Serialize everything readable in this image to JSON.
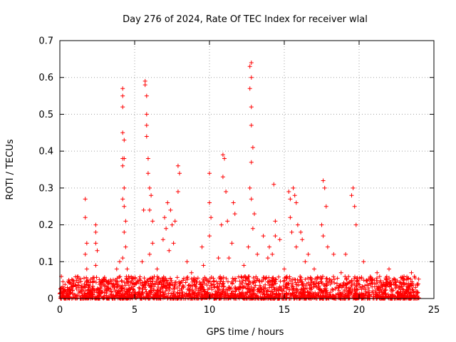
{
  "chart_data": {
    "type": "scatter",
    "title": "Day 276 of 2024, Rate Of TEC Index for receiver wlal",
    "xlabel": "GPS time / hours",
    "ylabel": "ROTI / TECUs",
    "xlim": [
      0,
      25
    ],
    "ylim": [
      0,
      0.7
    ],
    "xticks": [
      0,
      5,
      10,
      15,
      20,
      25
    ],
    "xtick_labels": [
      "0",
      "5",
      "10",
      "15",
      "20",
      "25"
    ],
    "yticks": [
      0,
      0.1,
      0.2,
      0.3,
      0.4,
      0.5,
      0.6,
      0.7
    ],
    "ytick_labels": [
      "0",
      "0.1",
      "0.2",
      "0.3",
      "0.4",
      "0.5",
      "0.6",
      "0.7"
    ],
    "grid": true,
    "marker": "+",
    "color": "#ff0000",
    "baseline": {
      "x_range": [
        0,
        24
      ],
      "y_range": [
        0.0,
        0.06
      ]
    },
    "series": [
      {
        "name": "ROTI",
        "x": [
          0.1,
          0.5,
          1.2,
          1.7,
          1.7,
          1.8,
          1.7,
          1.8,
          2.4,
          2.4,
          2.4,
          2.5,
          2.4,
          3.8,
          4.0,
          4.2,
          4.2,
          4.2,
          4.2,
          4.3,
          4.2,
          4.3,
          4.2,
          4.3,
          4.2,
          4.3,
          4.4,
          4.3,
          4.4,
          4.2,
          4.5,
          4.6,
          5.5,
          5.6,
          5.7,
          5.7,
          5.8,
          5.8,
          5.8,
          5.8,
          5.9,
          5.9,
          6.0,
          6.1,
          6.0,
          6.2,
          6.2,
          6.0,
          6.5,
          6.9,
          7.0,
          7.2,
          7.1,
          7.4,
          7.5,
          7.3,
          7.6,
          7.9,
          8.0,
          7.9,
          7.7,
          8.5,
          8.8,
          9.5,
          9.6,
          10.0,
          10.0,
          10.1,
          10.0,
          10.6,
          10.8,
          10.9,
          11.0,
          10.9,
          11.1,
          11.2,
          11.5,
          11.6,
          11.7,
          11.3,
          12.3,
          12.6,
          12.8,
          12.7,
          12.8,
          12.7,
          12.8,
          12.8,
          12.9,
          12.8,
          12.7,
          12.8,
          13.0,
          12.9,
          13.2,
          13.6,
          13.9,
          14.0,
          14.3,
          14.4,
          14.4,
          14.2,
          14.7,
          15.0,
          15.3,
          15.4,
          15.4,
          15.5,
          15.6,
          15.7,
          15.8,
          15.9,
          16.1,
          15.8,
          16.2,
          16.4,
          16.6,
          17.0,
          17.6,
          17.7,
          17.8,
          17.5,
          17.6,
          17.9,
          18.3,
          18.8,
          19.1,
          19.6,
          19.5,
          19.7,
          19.8,
          20.3,
          21.2,
          22.0,
          23.0,
          23.5,
          23.7
        ],
        "y": [
          0.06,
          0.03,
          0.06,
          0.27,
          0.22,
          0.15,
          0.12,
          0.08,
          0.2,
          0.18,
          0.15,
          0.13,
          0.09,
          0.08,
          0.1,
          0.57,
          0.55,
          0.52,
          0.45,
          0.43,
          0.38,
          0.38,
          0.36,
          0.3,
          0.27,
          0.25,
          0.21,
          0.18,
          0.14,
          0.11,
          0.08,
          0.06,
          0.1,
          0.24,
          0.59,
          0.58,
          0.55,
          0.5,
          0.47,
          0.44,
          0.38,
          0.34,
          0.3,
          0.28,
          0.24,
          0.21,
          0.15,
          0.12,
          0.08,
          0.16,
          0.22,
          0.26,
          0.19,
          0.24,
          0.2,
          0.13,
          0.15,
          0.36,
          0.34,
          0.29,
          0.21,
          0.1,
          0.07,
          0.14,
          0.09,
          0.34,
          0.26,
          0.22,
          0.17,
          0.11,
          0.2,
          0.39,
          0.38,
          0.33,
          0.29,
          0.21,
          0.15,
          0.26,
          0.23,
          0.11,
          0.09,
          0.14,
          0.64,
          0.63,
          0.6,
          0.57,
          0.52,
          0.47,
          0.41,
          0.37,
          0.3,
          0.27,
          0.23,
          0.19,
          0.12,
          0.17,
          0.11,
          0.14,
          0.31,
          0.21,
          0.17,
          0.12,
          0.16,
          0.08,
          0.29,
          0.27,
          0.22,
          0.18,
          0.3,
          0.28,
          0.26,
          0.2,
          0.18,
          0.14,
          0.16,
          0.1,
          0.12,
          0.08,
          0.32,
          0.3,
          0.25,
          0.2,
          0.17,
          0.14,
          0.12,
          0.07,
          0.12,
          0.3,
          0.28,
          0.25,
          0.2,
          0.1,
          0.07,
          0.08,
          0.06,
          0.07,
          0.06
        ]
      }
    ]
  }
}
